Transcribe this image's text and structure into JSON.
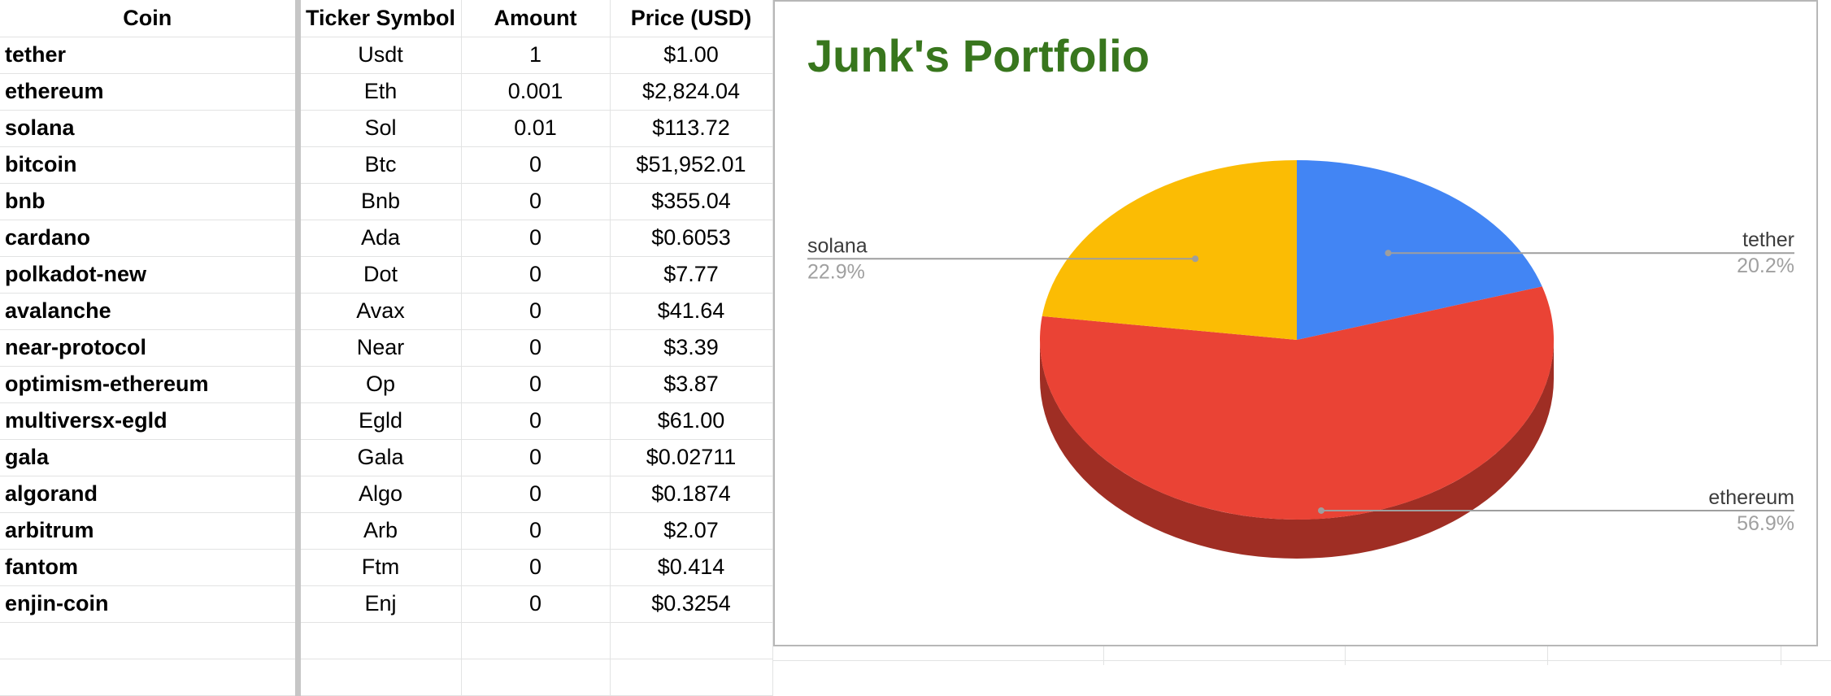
{
  "table": {
    "headers": [
      "Coin",
      "Ticker Symbol",
      "Amount",
      "Price  (USD)"
    ],
    "rows": [
      {
        "coin": "tether",
        "ticker": "Usdt",
        "amount": "1",
        "price": "$1.00"
      },
      {
        "coin": "ethereum",
        "ticker": "Eth",
        "amount": "0.001",
        "price": "$2,824.04"
      },
      {
        "coin": "solana",
        "ticker": "Sol",
        "amount": "0.01",
        "price": "$113.72"
      },
      {
        "coin": "bitcoin",
        "ticker": "Btc",
        "amount": "0",
        "price": "$51,952.01"
      },
      {
        "coin": "bnb",
        "ticker": "Bnb",
        "amount": "0",
        "price": "$355.04"
      },
      {
        "coin": "cardano",
        "ticker": "Ada",
        "amount": "0",
        "price": "$0.6053"
      },
      {
        "coin": "polkadot-new",
        "ticker": "Dot",
        "amount": "0",
        "price": "$7.77"
      },
      {
        "coin": "avalanche",
        "ticker": "Avax",
        "amount": "0",
        "price": "$41.64"
      },
      {
        "coin": "near-protocol",
        "ticker": "Near",
        "amount": "0",
        "price": "$3.39"
      },
      {
        "coin": "optimism-ethereum",
        "ticker": "Op",
        "amount": "0",
        "price": "$3.87"
      },
      {
        "coin": "multiversx-egld",
        "ticker": "Egld",
        "amount": "0",
        "price": "$61.00"
      },
      {
        "coin": "gala",
        "ticker": "Gala",
        "amount": "0",
        "price": "$0.02711"
      },
      {
        "coin": "algorand",
        "ticker": "Algo",
        "amount": "0",
        "price": "$0.1874"
      },
      {
        "coin": "arbitrum",
        "ticker": "Arb",
        "amount": "0",
        "price": "$2.07"
      },
      {
        "coin": "fantom",
        "ticker": "Ftm",
        "amount": "0",
        "price": "$0.414"
      },
      {
        "coin": "enjin-coin",
        "ticker": "Enj",
        "amount": "0",
        "price": "$0.3254"
      }
    ]
  },
  "chart_data": {
    "type": "pie",
    "title": "Junk's Portfolio",
    "style": "3d",
    "slices": [
      {
        "label": "tether",
        "percent_label": "20.2%",
        "value": 20.2,
        "color": "#4285f4"
      },
      {
        "label": "ethereum",
        "percent_label": "56.9%",
        "value": 56.9,
        "color": "#ea4335"
      },
      {
        "label": "solana",
        "percent_label": "22.9%",
        "value": 22.9,
        "color": "#fbbc04"
      }
    ],
    "legend": "labels-on-chart",
    "title_color": "#38761d"
  }
}
